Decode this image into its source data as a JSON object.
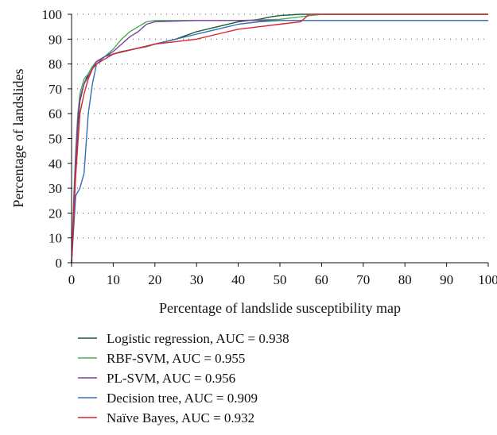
{
  "chart_data": {
    "type": "line",
    "title": "",
    "xlabel": "Percentage of landslide susceptibility map",
    "ylabel": "Percentage of landslides",
    "xlim": [
      0,
      100
    ],
    "ylim": [
      0,
      100
    ],
    "xticks": [
      "0",
      "10",
      "20",
      "30",
      "40",
      "50",
      "60",
      "70",
      "80",
      "90",
      "100"
    ],
    "yticks": [
      "0",
      "10",
      "20",
      "30",
      "40",
      "50",
      "60",
      "70",
      "80",
      "90",
      "100"
    ],
    "grid": "horizontal dotted",
    "legend_position": "bottom",
    "series": [
      {
        "name": "Logistic regression, AUC = 0.938",
        "color": "#1a5a32",
        "x": [
          0,
          0.5,
          1,
          1.5,
          2,
          3,
          4,
          5,
          6,
          8,
          10,
          12,
          15,
          18,
          20,
          25,
          30,
          35,
          40,
          45,
          48,
          50,
          55,
          60,
          70,
          80,
          90,
          100
        ],
        "y": [
          0,
          20,
          40,
          55,
          65,
          72,
          76,
          79,
          81,
          83,
          84,
          85,
          86,
          87,
          88,
          90,
          93,
          95,
          97,
          98,
          99,
          99.5,
          100,
          100,
          100,
          100,
          100,
          100
        ]
      },
      {
        "name": "RBF-SVM, AUC = 0.955",
        "color": "#4caf50",
        "x": [
          0,
          0.5,
          1,
          1.5,
          2,
          3,
          4,
          5,
          6,
          8,
          10,
          12,
          14,
          16,
          18,
          20,
          30,
          40,
          50,
          60,
          70,
          80,
          90,
          100
        ],
        "y": [
          0,
          25,
          45,
          60,
          68,
          74,
          76,
          79,
          81,
          83,
          86,
          90,
          93,
          95,
          97,
          97.5,
          97.5,
          97.5,
          98,
          100,
          100,
          100,
          100,
          100
        ]
      },
      {
        "name": "PL-SVM, AUC = 0.956",
        "color": "#7e3fa0",
        "x": [
          0,
          0.5,
          1,
          1.5,
          2,
          3,
          4,
          5,
          6,
          8,
          10,
          12,
          14,
          16,
          18,
          20,
          30,
          40,
          50,
          60,
          70,
          80,
          90,
          100
        ],
        "y": [
          0,
          22,
          42,
          58,
          66,
          72,
          75,
          78,
          81,
          83,
          85,
          88,
          91,
          93,
          96,
          97,
          97.5,
          97.5,
          97.5,
          97.5,
          97.5,
          97.5,
          97.5,
          97.5
        ]
      },
      {
        "name": "Decision tree, AUC = 0.909",
        "color": "#3a6db5",
        "x": [
          0,
          1,
          2,
          3,
          4,
          5,
          6,
          8,
          10,
          15,
          20,
          25,
          30,
          35,
          40,
          45,
          50,
          55,
          60,
          70,
          80,
          90,
          100
        ],
        "y": [
          0,
          27,
          30,
          36,
          60,
          72,
          80,
          83,
          84,
          86,
          88,
          90,
          92,
          94,
          96,
          97,
          97.5,
          97.5,
          97.5,
          97.5,
          97.5,
          97.5,
          97.5
        ]
      },
      {
        "name": "Naïve Bayes, AUC = 0.932",
        "color": "#d7262f",
        "x": [
          0,
          0.5,
          1,
          1.5,
          2,
          3,
          4,
          5,
          6,
          8,
          10,
          15,
          20,
          25,
          30,
          35,
          40,
          45,
          50,
          55,
          57,
          60,
          70,
          80,
          90,
          100
        ],
        "y": [
          0,
          18,
          35,
          48,
          60,
          68,
          74,
          78,
          80,
          82,
          84,
          86,
          88,
          89,
          90,
          92,
          94,
          95,
          96,
          97,
          100,
          100,
          100,
          100,
          100,
          100
        ]
      }
    ]
  }
}
